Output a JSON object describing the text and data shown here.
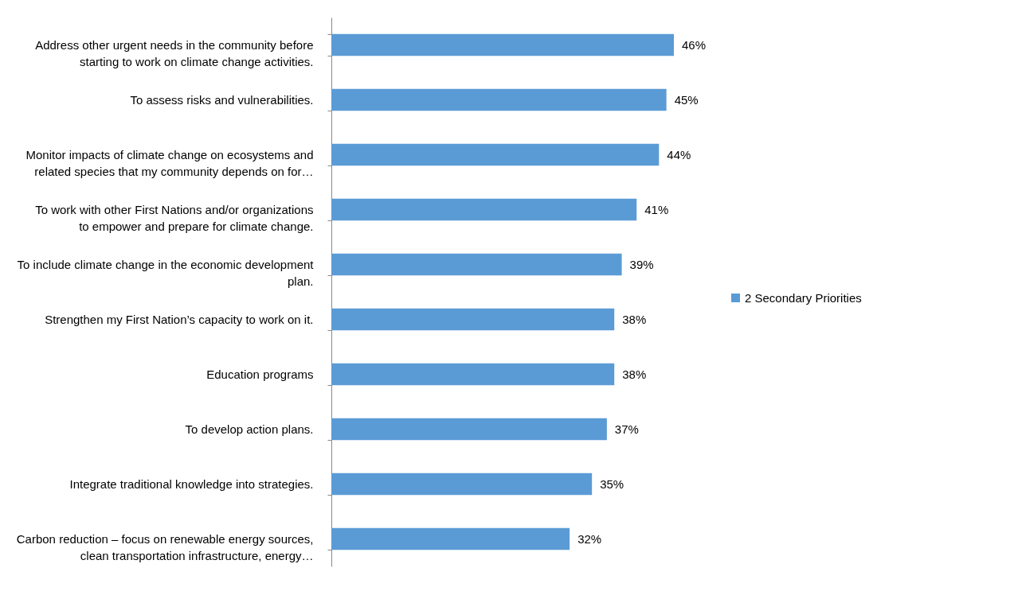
{
  "chart_data": {
    "type": "bar",
    "orientation": "horizontal",
    "legend": "right",
    "categories": [
      "Address other urgent needs in the community before starting to work on climate change activities.",
      "To assess risks and vulnerabilities.",
      "Monitor impacts of climate change on ecosystems and related species that my community depends on for…",
      "To work with other First Nations and/or organizations to empower and prepare for climate change.",
      "To include climate change in the economic development plan.",
      "Strengthen my First Nation’s capacity to work on it.",
      "Education programs",
      "To develop action plans.",
      "Integrate traditional knowledge into strategies.",
      "Carbon reduction – focus on renewable energy sources, clean transportation infrastructure, energy…"
    ],
    "series": [
      {
        "name": "2 Secondary Priorities",
        "color": "#5b9bd5",
        "values": [
          46,
          45,
          44,
          41,
          39,
          38,
          38,
          37,
          35,
          32
        ],
        "value_labels": [
          "46%",
          "45%",
          "44%",
          "41%",
          "39%",
          "38%",
          "38%",
          "37%",
          "35%",
          "32%"
        ]
      }
    ]
  }
}
